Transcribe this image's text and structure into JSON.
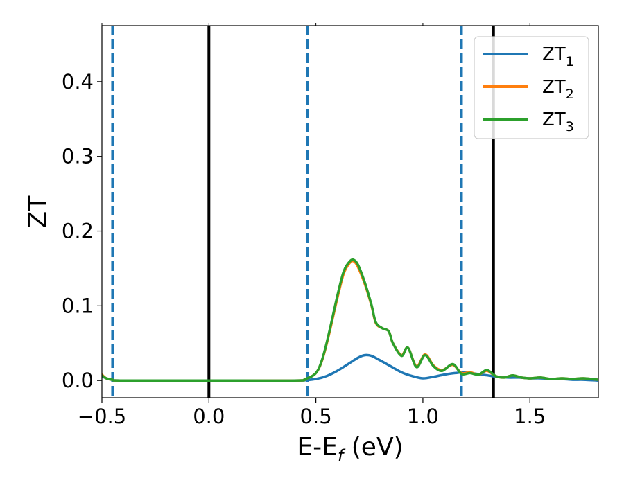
{
  "chart_data": {
    "type": "line",
    "xlabel": "E-E",
    "xlabel_sub": "f",
    "xlabel_unit": " (eV)",
    "ylabel": "ZT",
    "xlim": [
      -0.5,
      1.82
    ],
    "ylim": [
      -0.023,
      0.475
    ],
    "xticks": [
      -0.5,
      0.0,
      0.5,
      1.0,
      1.5
    ],
    "xtick_labels": [
      "−0.5",
      "0.0",
      "0.5",
      "1.0",
      "1.5"
    ],
    "yticks": [
      0.0,
      0.1,
      0.2,
      0.3,
      0.4
    ],
    "ytick_labels": [
      "0.0",
      "0.1",
      "0.2",
      "0.3",
      "0.4"
    ],
    "grid": false,
    "legend_position": "top-right",
    "vertical_lines": [
      {
        "x": -0.45,
        "style": "dashed",
        "color": "#1f77b4"
      },
      {
        "x": 0.0,
        "style": "solid",
        "color": "#000000"
      },
      {
        "x": 0.46,
        "style": "dashed",
        "color": "#1f77b4"
      },
      {
        "x": 1.18,
        "style": "dashed",
        "color": "#1f77b4"
      },
      {
        "x": 1.33,
        "style": "solid",
        "color": "#000000"
      }
    ],
    "series": [
      {
        "name": "ZT",
        "name_sub": "1",
        "color": "#1f77b4",
        "x": [
          -0.5,
          -0.48,
          -0.45,
          -0.4,
          0.0,
          0.4,
          0.45,
          0.5,
          0.55,
          0.6,
          0.65,
          0.7,
          0.73,
          0.76,
          0.8,
          0.85,
          0.9,
          0.95,
          1.0,
          1.05,
          1.1,
          1.15,
          1.2,
          1.25,
          1.3,
          1.35,
          1.4,
          1.45,
          1.5,
          1.55,
          1.6,
          1.65,
          1.7,
          1.75,
          1.82
        ],
        "y": [
          0.006,
          0.003,
          0.001,
          0.0,
          0.0,
          0.0,
          0.0005,
          0.002,
          0.006,
          0.013,
          0.022,
          0.031,
          0.034,
          0.033,
          0.027,
          0.019,
          0.011,
          0.006,
          0.003,
          0.005,
          0.008,
          0.01,
          0.011,
          0.009,
          0.007,
          0.005,
          0.004,
          0.004,
          0.003,
          0.003,
          0.002,
          0.002,
          0.001,
          0.001,
          0.0
        ]
      },
      {
        "name": "ZT",
        "name_sub": "2",
        "color": "#ff7f0e",
        "x": [
          -0.5,
          -0.48,
          -0.45,
          -0.4,
          0.0,
          0.4,
          0.45,
          0.5,
          0.53,
          0.56,
          0.6,
          0.63,
          0.66,
          0.68,
          0.7,
          0.73,
          0.76,
          0.78,
          0.81,
          0.84,
          0.86,
          0.9,
          0.93,
          0.97,
          1.01,
          1.05,
          1.09,
          1.14,
          1.18,
          1.22,
          1.26,
          1.3,
          1.34,
          1.38,
          1.42,
          1.46,
          1.5,
          1.55,
          1.6,
          1.65,
          1.7,
          1.75,
          1.82
        ],
        "y": [
          0.008,
          0.003,
          0.001,
          0.0,
          0.0,
          0.0,
          0.002,
          0.01,
          0.028,
          0.06,
          0.11,
          0.143,
          0.158,
          0.159,
          0.15,
          0.128,
          0.1,
          0.077,
          0.07,
          0.066,
          0.05,
          0.034,
          0.044,
          0.019,
          0.035,
          0.02,
          0.014,
          0.021,
          0.01,
          0.011,
          0.008,
          0.013,
          0.006,
          0.004,
          0.007,
          0.004,
          0.003,
          0.004,
          0.002,
          0.003,
          0.002,
          0.003,
          0.001
        ]
      },
      {
        "name": "ZT",
        "name_sub": "3",
        "color": "#2ca02c",
        "x": [
          -0.5,
          -0.48,
          -0.45,
          -0.4,
          0.0,
          0.4,
          0.45,
          0.5,
          0.53,
          0.56,
          0.6,
          0.63,
          0.66,
          0.68,
          0.7,
          0.73,
          0.76,
          0.78,
          0.81,
          0.84,
          0.86,
          0.9,
          0.93,
          0.97,
          1.01,
          1.05,
          1.09,
          1.14,
          1.18,
          1.22,
          1.26,
          1.3,
          1.34,
          1.38,
          1.42,
          1.46,
          1.5,
          1.55,
          1.6,
          1.65,
          1.7,
          1.75,
          1.82
        ],
        "y": [
          0.007,
          0.003,
          0.001,
          0.0,
          0.0,
          0.0,
          0.002,
          0.01,
          0.029,
          0.062,
          0.113,
          0.146,
          0.16,
          0.161,
          0.153,
          0.13,
          0.101,
          0.078,
          0.07,
          0.066,
          0.05,
          0.033,
          0.044,
          0.018,
          0.034,
          0.019,
          0.013,
          0.022,
          0.009,
          0.01,
          0.008,
          0.014,
          0.006,
          0.004,
          0.007,
          0.004,
          0.003,
          0.004,
          0.002,
          0.003,
          0.002,
          0.003,
          0.001
        ]
      }
    ]
  }
}
